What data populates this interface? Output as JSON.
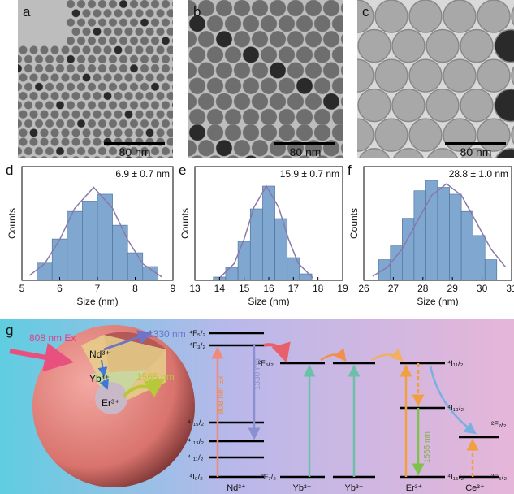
{
  "tem": [
    {
      "panel": "a",
      "scale_bar": "80 nm"
    },
    {
      "panel": "b",
      "scale_bar": "80 nm"
    },
    {
      "panel": "c",
      "scale_bar": "80 nm"
    }
  ],
  "chart_data": [
    {
      "type": "histogram",
      "panel": "d",
      "annotation": "6.9 ± 0.7 nm",
      "x_label": "Size (nm)",
      "y_label": "Counts",
      "color": "#7fa7cf",
      "bins": [
        5.4,
        5.8,
        6.2,
        6.6,
        7.0,
        7.4,
        7.8,
        8.2,
        8.6
      ],
      "values": [
        5,
        12,
        20,
        23,
        25,
        16,
        8,
        4
      ],
      "fit": {
        "color": "#8a78ac",
        "x": [
          5.2,
          5.6,
          6.0,
          6.4,
          6.9,
          7.4,
          7.8,
          8.2,
          8.7
        ],
        "values": [
          1.4,
          4.8,
          11.8,
          20.9,
          27,
          20.9,
          11.8,
          4.8,
          1.0
        ]
      },
      "xlim": [
        5,
        9
      ],
      "xticks": [
        5,
        6,
        7,
        8,
        9
      ],
      "ylim": [
        0,
        33
      ]
    },
    {
      "type": "histogram",
      "panel": "e",
      "annotation": "15.9 ± 0.7 nm",
      "x_label": "Size (nm)",
      "y_label": "Counts",
      "color": "#7fa7cf",
      "bins": [
        13.75,
        14.25,
        14.75,
        15.25,
        15.75,
        16.25,
        16.75,
        17.25,
        17.75
      ],
      "values": [
        1,
        4,
        12,
        22,
        29,
        19,
        7,
        2
      ],
      "fit": {
        "color": "#8a78ac",
        "x": [
          14.0,
          14.6,
          15.0,
          15.4,
          15.9,
          16.4,
          16.8,
          17.2,
          17.8
        ],
        "values": [
          0.7,
          5.2,
          12.7,
          22.5,
          29,
          22.5,
          12.7,
          5.2,
          0.7
        ]
      },
      "xlim": [
        13,
        19
      ],
      "xticks": [
        13,
        14,
        15,
        16,
        17,
        18,
        19
      ],
      "ylim": [
        0,
        35
      ]
    },
    {
      "type": "histogram",
      "panel": "f",
      "annotation": "28.8 ± 1.0 nm",
      "x_label": "Size (nm)",
      "y_label": "Counts",
      "color": "#7fa7cf",
      "bins": [
        26.5,
        26.9,
        27.3,
        27.7,
        28.1,
        28.5,
        28.9,
        29.3,
        29.7,
        30.1,
        30.5
      ],
      "values": [
        6,
        10,
        18,
        26,
        29,
        27,
        25,
        20,
        13,
        6
      ],
      "fit": {
        "color": "#8a78ac",
        "x": [
          26.3,
          26.8,
          27.3,
          27.8,
          28.3,
          28.8,
          29.3,
          29.8,
          30.3,
          30.8
        ],
        "values": [
          1.2,
          3.8,
          9.1,
          17,
          24.7,
          28,
          24.7,
          17,
          9.1,
          3.8
        ]
      },
      "xlim": [
        26,
        31
      ],
      "xticks": [
        26,
        27,
        28,
        29,
        30,
        31
      ],
      "ylim": [
        0,
        33
      ]
    }
  ],
  "diagram": {
    "panel": "g",
    "excitation": "808 nm Ex",
    "emission_nd": "1330 nm",
    "emission_er": "1565 nm",
    "sphere_ions": [
      "Nd³⁺",
      "Yb³⁺",
      "Er³⁺"
    ],
    "nd_levels": [
      "⁴F₅/₂",
      "⁴F₃/₂",
      "⁴I₁₅/₂",
      "⁴I₁₃/₂",
      "⁴I₁₁/₂",
      "⁴I₉/₂"
    ],
    "yb_levels": [
      "²F₅/₂",
      "²F₇/₂"
    ],
    "er_levels": [
      "⁴I₁₁/₂",
      "⁴I₁₃/₂",
      "⁴I₁₅/₂"
    ],
    "ce_levels": [
      "²F₇/₂",
      "²F₅/₂"
    ],
    "ions": [
      "Nd³⁺",
      "Yb³⁺",
      "Yb³⁺",
      "Er³⁺",
      "Ce³⁺"
    ]
  }
}
